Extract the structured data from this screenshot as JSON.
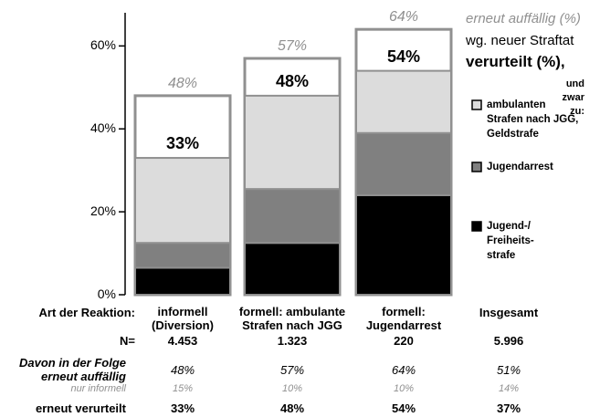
{
  "chart_data": {
    "type": "stacked-bar",
    "categories": [
      "informell\n(Diversion)",
      "formell: ambulante\nStrafen nach JGG",
      "formell:\nJugendarrest"
    ],
    "series": [
      {
        "name": "Jugend-/\nFreiheits-\nstrafe",
        "color": "#000000",
        "values": [
          6.5,
          12.5,
          24
        ]
      },
      {
        "name": "Jugendarrest",
        "color": "#808080",
        "values": [
          6,
          13,
          15
        ]
      },
      {
        "name": "ambulanten\nStrafen nach JGG,\nGeldstrafe",
        "color": "#dcdcdc",
        "values": [
          20.5,
          22.5,
          15
        ]
      }
    ],
    "erneut_auffaellig": {
      "values": [
        48,
        57,
        64
      ],
      "value_labels": [
        "48%",
        "57%",
        "64%"
      ],
      "color": "#ffffff"
    },
    "verurteilt": {
      "values": [
        33,
        48,
        54
      ],
      "value_labels": [
        "33%",
        "48%",
        "54%"
      ]
    },
    "ylim": [
      0,
      68
    ],
    "yticks": [
      {
        "value": 0,
        "label": "0%"
      },
      {
        "value": 20,
        "label": "20%"
      },
      {
        "value": 40,
        "label": "40%"
      },
      {
        "value": 60,
        "label": "60%"
      }
    ],
    "legend_title": [
      "erneut auffällig (%)",
      "wg. neuer Straftat",
      "verurteilt (%),",
      "und zwar zu:"
    ]
  },
  "table": {
    "header_label": "Art der Reaktion:",
    "total_header": "Insgesamt",
    "rows": [
      {
        "label": "N=",
        "cells": [
          "4.453",
          "1.323",
          "220",
          "5.996"
        ]
      },
      {
        "label": "Davon in der Folge\nerneut auffällig",
        "cells": [
          "48%",
          "57%",
          "64%",
          "51%"
        ]
      },
      {
        "label": "nur informell",
        "cells": [
          "15%",
          "10%",
          "10%",
          "14%"
        ]
      },
      {
        "label": "erneut verurteilt",
        "cells": [
          "33%",
          "48%",
          "54%",
          "37%"
        ]
      }
    ]
  }
}
